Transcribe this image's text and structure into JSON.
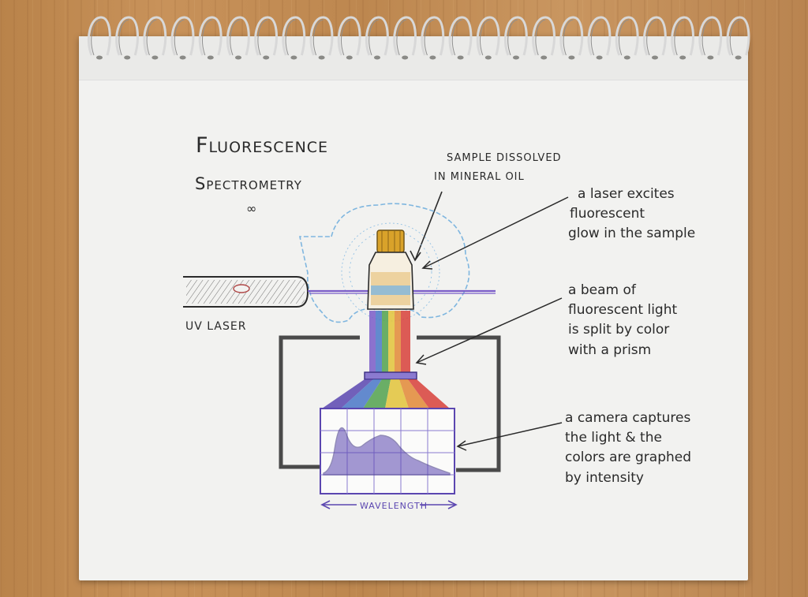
{
  "title": {
    "line1": "Fluorescence",
    "line2": "Spectrometry",
    "flourish": "∞"
  },
  "labels": {
    "sample": [
      "SAMPLE DISSOLVED",
      "IN MINERAL OIL"
    ],
    "laser": "UV LASER",
    "wavelength": "WAVELENGTH"
  },
  "notes": [
    {
      "lines": [
        "a laser excites",
        "fluorescent",
        "glow in the sample"
      ]
    },
    {
      "lines": [
        "a beam of",
        "fluorescent light",
        "is split by color",
        "with a prism"
      ]
    },
    {
      "lines": [
        "a camera captures",
        "the light & the",
        "colors are graphed",
        "by intensity"
      ]
    }
  ],
  "colors": {
    "paper": "#f2f2f0",
    "pencil": "#2a2a2a",
    "uv": "#7a5cc8",
    "glow": "#7fb6df",
    "cap": "#d9a22a",
    "graph": "#5b46b0"
  },
  "icons": [
    "spiral-ring",
    "uv-laser",
    "sample-vial",
    "prism",
    "camera-graph"
  ]
}
